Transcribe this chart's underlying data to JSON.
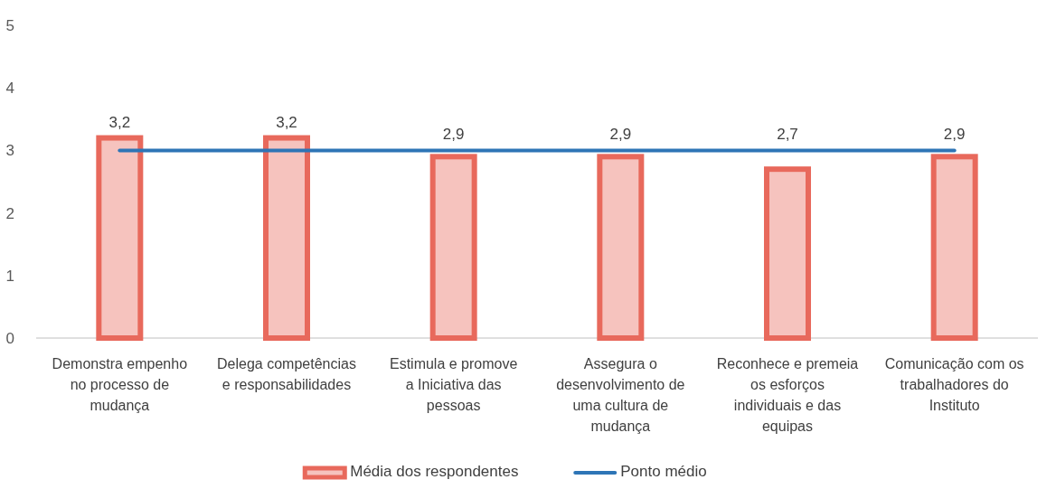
{
  "chart_data": {
    "type": "bar",
    "categories": [
      "Demonstra empenho no processo de mudança",
      "Delega competências e responsabilidades",
      "Estimula e promove a Iniciativa das pessoas",
      "Assegura o desenvolvimento de uma cultura de mudança",
      "Reconhece e premeia os esforços individuais e das equipas",
      "Comunicação com os trabalhadores do Instituto"
    ],
    "series": [
      {
        "name": "Média dos respondentes",
        "color": "#e8695c",
        "values": [
          3.2,
          3.2,
          2.9,
          2.9,
          2.7,
          2.9
        ],
        "value_labels": [
          "3,2",
          "3,2",
          "2,9",
          "2,9",
          "2,7",
          "2,9"
        ]
      },
      {
        "name": "Ponto médio",
        "type": "line",
        "color": "#2e75b6",
        "values": [
          3,
          3,
          3,
          3,
          3,
          3
        ]
      }
    ],
    "ylim": [
      0,
      5
    ],
    "yticks": [
      0,
      1,
      2,
      3,
      4,
      5
    ],
    "grid": false,
    "legend": "bottom"
  }
}
